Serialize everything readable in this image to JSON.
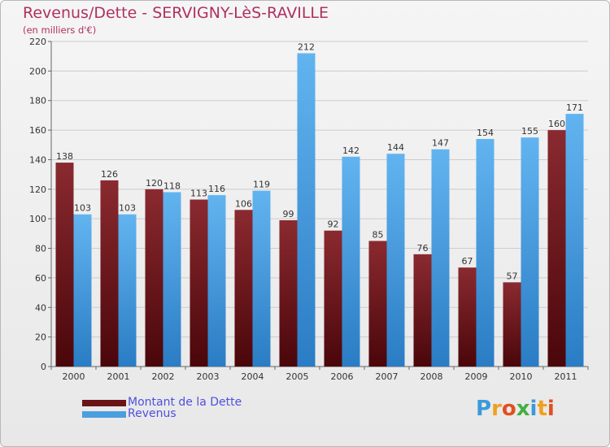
{
  "title": "Revenus/Dette - SERVIGNY-LèS-RAVILLE",
  "subtitle": "(en milliers d'€)",
  "brand": "Proxiti",
  "brand_letters": [
    {
      "ch": "P",
      "color": "#3a9ad9"
    },
    {
      "ch": "r",
      "color": "#f0a020"
    },
    {
      "ch": "o",
      "color": "#e05020"
    },
    {
      "ch": "x",
      "color": "#40b040"
    },
    {
      "ch": "i",
      "color": "#3a9ad9"
    },
    {
      "ch": "t",
      "color": "#f0a020"
    },
    {
      "ch": "i",
      "color": "#e05020"
    }
  ],
  "legend": [
    {
      "label": "Montant de la Dette",
      "color": "#6b1418"
    },
    {
      "label": "Revenus",
      "color": "#4a9fe0"
    }
  ],
  "chart_data": {
    "type": "bar",
    "title": "Revenus/Dette - SERVIGNY-LèS-RAVILLE",
    "subtitle": "(en milliers d'€)",
    "categories": [
      "2000",
      "2001",
      "2002",
      "2003",
      "2004",
      "2005",
      "2006",
      "2007",
      "2008",
      "2009",
      "2010",
      "2011"
    ],
    "series": [
      {
        "name": "Montant de la Dette",
        "color": "#6b1418",
        "values": [
          138,
          126,
          120,
          113,
          106,
          99,
          92,
          85,
          76,
          67,
          57,
          160
        ]
      },
      {
        "name": "Revenus",
        "color": "#4a9fe0",
        "values": [
          103,
          103,
          118,
          116,
          119,
          212,
          142,
          144,
          147,
          154,
          155,
          171
        ]
      }
    ],
    "yticks": [
      0,
      20,
      40,
      60,
      80,
      100,
      120,
      140,
      160,
      180,
      200,
      220
    ],
    "ylim": [
      0,
      220
    ],
    "grid": true,
    "legend_position": "bottom-left"
  }
}
